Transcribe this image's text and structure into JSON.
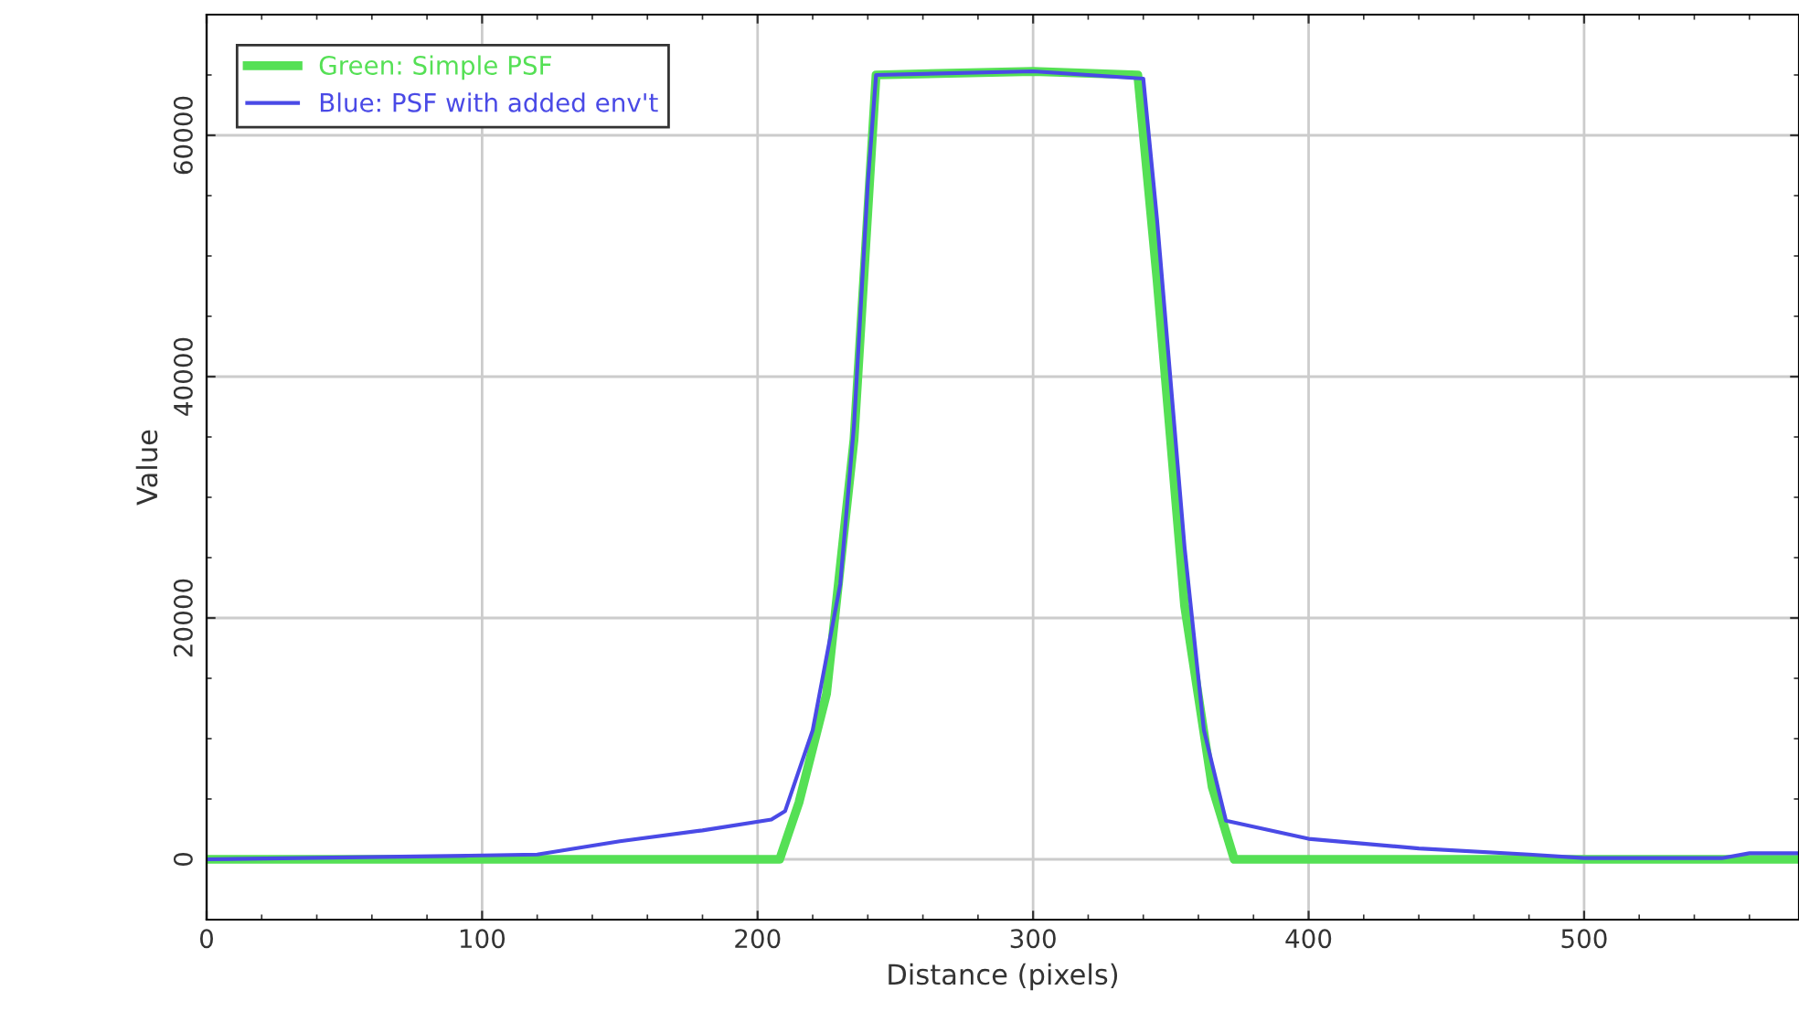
{
  "chart_data": {
    "type": "line",
    "xlabel": "Distance (pixels)",
    "ylabel": "Value",
    "xlim": [
      0,
      578
    ],
    "ylim": [
      -5000,
      70000
    ],
    "xticks": [
      0,
      100,
      200,
      300,
      400,
      500
    ],
    "yticks": [
      0,
      20000,
      40000,
      60000
    ],
    "grid": true,
    "legend": "top left",
    "marker": "none",
    "line_style": "solid",
    "series": [
      {
        "name": "Green: Simple PSF",
        "color": "#55e055",
        "x": [
          0,
          208,
          215,
          225,
          235,
          243,
          300,
          338,
          345,
          355,
          365,
          373,
          450,
          578
        ],
        "values": [
          0,
          0,
          4700,
          13700,
          34800,
          65000,
          65300,
          65000,
          48000,
          21000,
          6000,
          0,
          0,
          0
        ]
      },
      {
        "name": "Blue: PSF with added env't",
        "color": "#4a4ae6",
        "x": [
          0,
          95,
          120,
          150,
          180,
          205,
          210,
          220,
          230,
          235,
          240,
          243,
          300,
          340,
          345,
          355,
          362,
          370,
          400,
          440,
          480,
          500,
          550,
          560,
          578
        ],
        "values": [
          0,
          300,
          400,
          1500,
          2400,
          3300,
          4000,
          10700,
          22800,
          36000,
          56000,
          65000,
          65300,
          64700,
          53000,
          25800,
          10700,
          3200,
          1700,
          900,
          400,
          100,
          100,
          500,
          500
        ]
      }
    ]
  }
}
